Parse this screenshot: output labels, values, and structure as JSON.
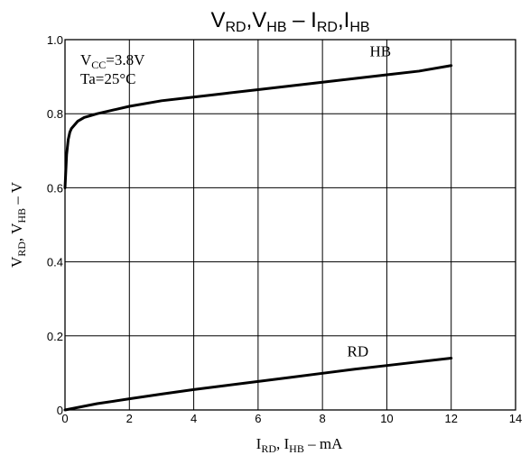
{
  "chart_data": {
    "type": "line",
    "title": {
      "parts": [
        {
          "main": "V",
          "sub": "RD"
        },
        {
          "main": ",V",
          "sub": "HB"
        },
        {
          "main": "  –  I",
          "sub": "RD"
        },
        {
          "main": ",I",
          "sub": "HB"
        }
      ]
    },
    "xlabel": {
      "parts": [
        {
          "main": "I",
          "sub": "RD"
        },
        {
          "main": ", I",
          "sub": "HB"
        },
        {
          "main": " – mA",
          "sub": ""
        }
      ]
    },
    "ylabel": {
      "parts": [
        {
          "main": "V",
          "sub": "RD"
        },
        {
          "main": ", V",
          "sub": "HB"
        },
        {
          "main": " – V",
          "sub": ""
        }
      ]
    },
    "xlim": [
      0,
      14
    ],
    "ylim": [
      0,
      1.0
    ],
    "x_ticks": [
      "0",
      "2",
      "4",
      "6",
      "8",
      "10",
      "12",
      "14"
    ],
    "y_ticks": [
      "0",
      "0.2",
      "0.4",
      "0.6",
      "0.8",
      "1.0"
    ],
    "grid": true,
    "annotations": [
      {
        "parts": [
          {
            "main": "V",
            "sub": "CC"
          },
          {
            "main": "=3.8V",
            "sub": ""
          }
        ]
      },
      {
        "parts": [
          {
            "main": "Ta=25°C",
            "sub": ""
          }
        ]
      }
    ],
    "series": [
      {
        "name": "HB",
        "x": [
          0,
          0.05,
          0.1,
          0.15,
          0.2,
          0.3,
          0.4,
          0.6,
          0.8,
          1.0,
          1.5,
          2,
          3,
          4,
          5,
          6,
          7,
          8,
          9,
          10,
          11,
          12
        ],
        "y": [
          0.6,
          0.69,
          0.73,
          0.75,
          0.76,
          0.77,
          0.78,
          0.79,
          0.795,
          0.8,
          0.81,
          0.82,
          0.835,
          0.845,
          0.855,
          0.865,
          0.875,
          0.885,
          0.895,
          0.905,
          0.915,
          0.93
        ]
      },
      {
        "name": "RD",
        "x": [
          0,
          1,
          2,
          3,
          4,
          5,
          6,
          7,
          8,
          9,
          10,
          11,
          12
        ],
        "y": [
          0,
          0.017,
          0.03,
          0.043,
          0.055,
          0.066,
          0.077,
          0.088,
          0.099,
          0.11,
          0.12,
          0.13,
          0.14
        ]
      }
    ]
  }
}
